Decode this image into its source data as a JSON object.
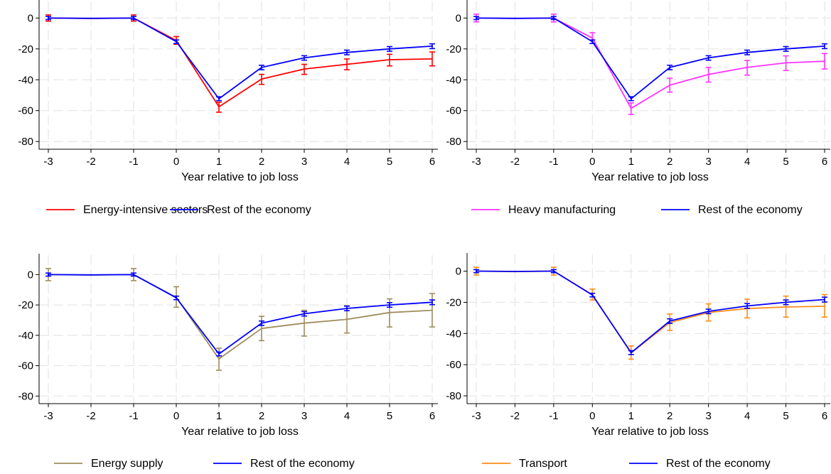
{
  "chart_data": [
    {
      "type": "line",
      "xlabel": "Year relative to job loss",
      "ylabel": "",
      "x": [
        -3,
        -2,
        -1,
        0,
        1,
        2,
        3,
        4,
        5,
        6
      ],
      "ylim": [
        -85,
        8
      ],
      "yticks": [
        0,
        -20,
        -40,
        -60,
        -80
      ],
      "grid": true,
      "legend_position": "bottom",
      "series": [
        {
          "name": "Energy-intensive sectors",
          "color": "#ff0000",
          "values": [
            0,
            -0.3,
            0,
            -14.5,
            -57.5,
            -39.5,
            -33,
            -30,
            -27,
            -26.5
          ],
          "ci_low": [
            -2,
            -0.3,
            -2,
            -17,
            -61,
            -43,
            -36.5,
            -33.5,
            -31,
            -31
          ],
          "ci_high": [
            2,
            -0.3,
            2,
            -12,
            -54.5,
            -36.5,
            -30,
            -26.5,
            -23.5,
            -22
          ]
        },
        {
          "name": "Rest of the economy",
          "color": "#0000ff",
          "values": [
            0,
            -0.2,
            0,
            -15.3,
            -52.3,
            -32,
            -25.8,
            -22.3,
            -20,
            -18.2
          ],
          "ci_low": [
            -1,
            -0.2,
            -1,
            -16.5,
            -53.5,
            -33.5,
            -27.3,
            -23.8,
            -21.5,
            -19.8
          ],
          "ci_high": [
            1,
            -0.2,
            1,
            -14.2,
            -51,
            -30.6,
            -24.4,
            -20.8,
            -18.5,
            -16.7
          ]
        }
      ]
    },
    {
      "type": "line",
      "xlabel": "Year relative to job loss",
      "ylabel": "",
      "x": [
        -3,
        -2,
        -1,
        0,
        1,
        2,
        3,
        4,
        5,
        6
      ],
      "ylim": [
        -85,
        8
      ],
      "yticks": [
        0,
        -20,
        -40,
        -60,
        -80
      ],
      "grid": true,
      "legend_position": "bottom",
      "series": [
        {
          "name": "Heavy manufacturing",
          "color": "#ff33ff",
          "values": [
            0,
            -0.3,
            0,
            -13,
            -58.5,
            -43.5,
            -36.5,
            -32,
            -29,
            -28
          ],
          "ci_low": [
            -2.5,
            -0.3,
            -2.5,
            -16.5,
            -62.5,
            -48,
            -41.5,
            -37,
            -34,
            -33
          ],
          "ci_high": [
            2.5,
            -0.3,
            2.5,
            -9.5,
            -55,
            -39,
            -32,
            -27.5,
            -24.5,
            -23
          ]
        },
        {
          "name": "Rest of the economy",
          "color": "#0000ff",
          "values": [
            0,
            -0.2,
            0,
            -15.3,
            -52.3,
            -32,
            -25.8,
            -22.3,
            -20,
            -18.2
          ],
          "ci_low": [
            -1,
            -0.2,
            -1,
            -16.5,
            -53.5,
            -33.5,
            -27.3,
            -23.8,
            -21.5,
            -19.8
          ],
          "ci_high": [
            1,
            -0.2,
            1,
            -14.2,
            -51,
            -30.6,
            -24.4,
            -20.8,
            -18.5,
            -16.7
          ]
        }
      ]
    },
    {
      "type": "line",
      "xlabel": "Year relative to job loss",
      "ylabel": "",
      "x": [
        -3,
        -2,
        -1,
        0,
        1,
        2,
        3,
        4,
        5,
        6
      ],
      "ylim": [
        -85,
        10
      ],
      "yticks": [
        0,
        -20,
        -40,
        -60,
        -80
      ],
      "grid": true,
      "legend_position": "bottom",
      "series": [
        {
          "name": "Energy supply",
          "color": "#a08d5e",
          "values": [
            0,
            -0.3,
            0,
            -15,
            -55.5,
            -35.5,
            -32,
            -29.5,
            -25,
            -23.5
          ],
          "ci_low": [
            -4,
            -0.3,
            -4,
            -21.5,
            -63,
            -43.5,
            -40.5,
            -38.5,
            -34.5,
            -34.5
          ],
          "ci_high": [
            4,
            -0.3,
            4,
            -8,
            -48.5,
            -27.5,
            -23.5,
            -20.5,
            -16,
            -12.5
          ]
        },
        {
          "name": "Rest of the economy",
          "color": "#0000ff",
          "values": [
            0,
            -0.2,
            0,
            -15.3,
            -52.3,
            -32,
            -25.8,
            -22.3,
            -20,
            -18.2
          ],
          "ci_low": [
            -1,
            -0.2,
            -1,
            -16.5,
            -53.5,
            -33.5,
            -27.3,
            -23.8,
            -21.5,
            -19.8
          ],
          "ci_high": [
            1,
            -0.2,
            1,
            -14.2,
            -51,
            -30.6,
            -24.4,
            -20.8,
            -18.5,
            -16.7
          ]
        }
      ]
    },
    {
      "type": "line",
      "xlabel": "Year relative to job loss",
      "ylabel": "",
      "x": [
        -3,
        -2,
        -1,
        0,
        1,
        2,
        3,
        4,
        5,
        6
      ],
      "ylim": [
        -85,
        8
      ],
      "yticks": [
        0,
        -20,
        -40,
        -60,
        -80
      ],
      "grid": true,
      "legend_position": "bottom",
      "series": [
        {
          "name": "Transport",
          "color": "#ff8c1a",
          "values": [
            0,
            -0.3,
            0,
            -15,
            -52.5,
            -33,
            -26.5,
            -24,
            -23,
            -22.5
          ],
          "ci_low": [
            -2.5,
            -0.3,
            -2.5,
            -18.5,
            -56.5,
            -38,
            -32,
            -30,
            -29.5,
            -29.5
          ],
          "ci_high": [
            2.5,
            -0.3,
            2.5,
            -11.5,
            -48,
            -27.5,
            -21,
            -18,
            -16,
            -15
          ]
        },
        {
          "name": "Rest of the economy",
          "color": "#0000ff",
          "values": [
            0,
            -0.2,
            0,
            -15.3,
            -52.3,
            -32,
            -25.8,
            -22.3,
            -20,
            -18.2
          ],
          "ci_low": [
            -1,
            -0.2,
            -1,
            -16.5,
            -53.5,
            -33.5,
            -27.3,
            -23.8,
            -21.5,
            -19.8
          ],
          "ci_high": [
            1,
            -0.2,
            1,
            -14.2,
            -51,
            -30.6,
            -24.4,
            -20.8,
            -18.5,
            -16.7
          ]
        }
      ]
    }
  ]
}
